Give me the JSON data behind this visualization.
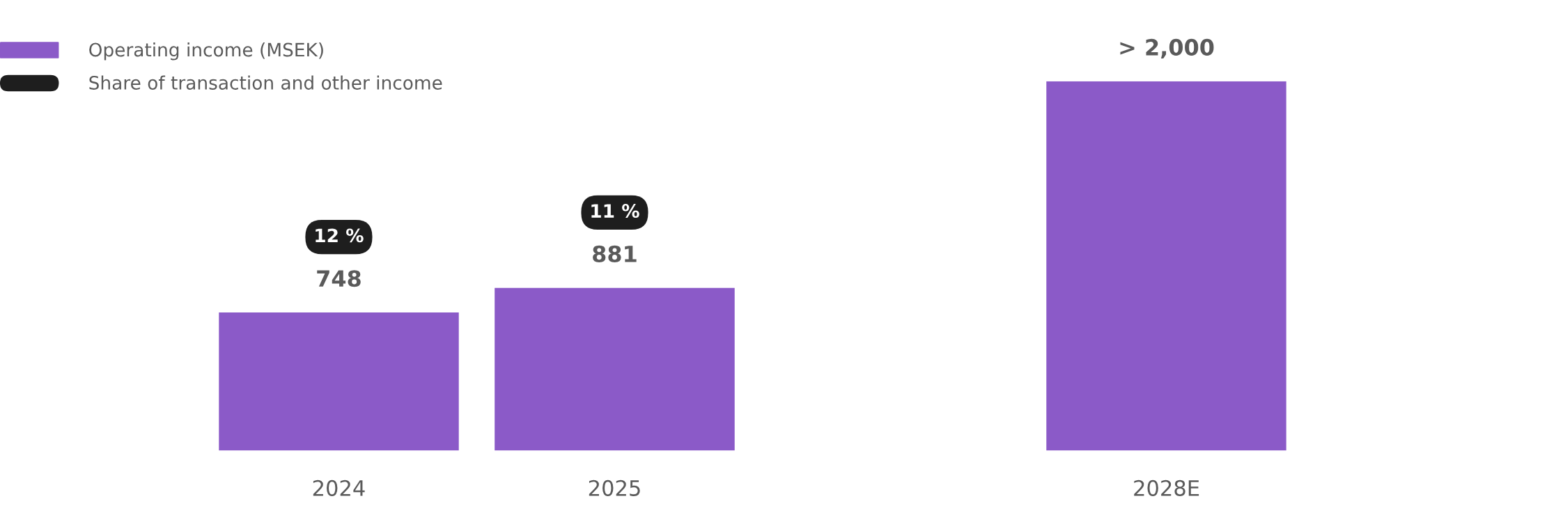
{
  "chart_data": {
    "type": "bar",
    "categories": [
      "2024",
      "2025",
      null,
      "2028E"
    ],
    "series": [
      {
        "name": "Operating income (MSEK)",
        "color": "#8b5ac8",
        "values": [
          748,
          881,
          null,
          2000
        ],
        "value_labels": [
          "748",
          "881",
          null,
          "> 2,000"
        ]
      }
    ],
    "annotations": [
      "Share of transaction and other income",
      "12 %",
      "11 %"
    ],
    "legend": "top left",
    "grid": false
  }
}
